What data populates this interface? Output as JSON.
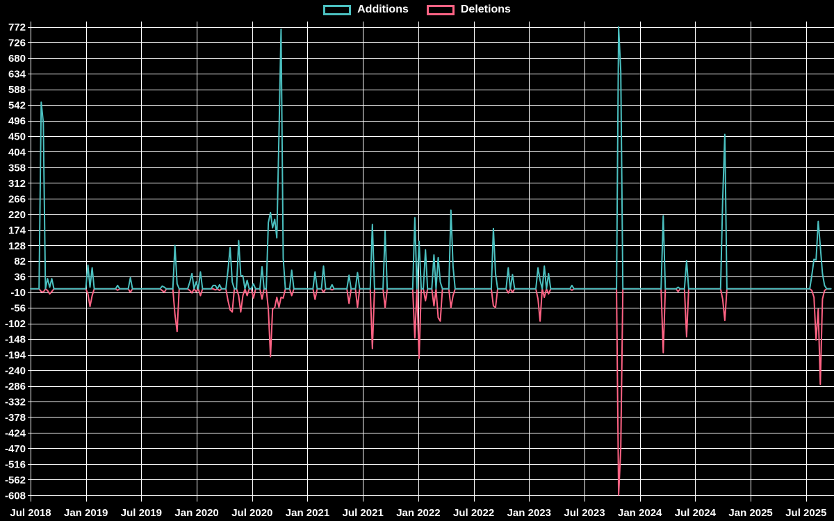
{
  "colors": {
    "background": "#000000",
    "grid": "#ffffff",
    "text": "#ffffff",
    "additions": "#4BC0C0",
    "deletions": "#FF6384"
  },
  "legend": {
    "items": [
      {
        "label": "Additions",
        "color": "#4BC0C0"
      },
      {
        "label": "Deletions",
        "color": "#FF6384"
      }
    ]
  },
  "chart_data": {
    "type": "line",
    "title": "",
    "xlabel": "",
    "ylabel": "",
    "legend_position": "top",
    "grid": true,
    "x_axis": {
      "tick_labels": [
        "Jul 2018",
        "Jan 2019",
        "Jul 2019",
        "Jan 2020",
        "Jul 2020",
        "Jan 2021",
        "Jul 2021",
        "Jan 2022",
        "Jul 2022",
        "Jan 2023",
        "Jul 2023",
        "Jan 2024",
        "Jul 2024",
        "Jan 2025",
        "Jul 2025"
      ],
      "start": "2018-07",
      "end": "2025-09",
      "tick_interval_months": 6
    },
    "y_axis": {
      "min": -608,
      "max": 772,
      "tick_step": 46,
      "tick_labels": [
        772,
        726,
        680,
        634,
        588,
        542,
        496,
        450,
        404,
        358,
        312,
        266,
        220,
        174,
        128,
        82,
        36,
        -10,
        -56,
        -102,
        -148,
        -194,
        -240,
        -286,
        -332,
        -378,
        -424,
        -470,
        -516,
        -562,
        -608
      ]
    },
    "series": [
      {
        "name": "Additions",
        "color": "#4BC0C0"
      },
      {
        "name": "Deletions",
        "color": "#FF6384"
      }
    ],
    "sampling": "weekly; additions and deletions are 0 for every week not listed in points",
    "points": [
      {
        "date": "2018-08-05",
        "additions": 550,
        "deletions": -8
      },
      {
        "date": "2018-08-12",
        "additions": 490,
        "deletions": -10
      },
      {
        "date": "2018-08-26",
        "additions": 30,
        "deletions": -5
      },
      {
        "date": "2018-09-02",
        "additions": 5,
        "deletions": -15
      },
      {
        "date": "2018-09-09",
        "additions": 30,
        "deletions": -8
      },
      {
        "date": "2019-01-06",
        "additions": 70,
        "deletions": -15
      },
      {
        "date": "2019-01-13",
        "additions": 5,
        "deletions": -52
      },
      {
        "date": "2019-01-20",
        "additions": 62,
        "deletions": -20
      },
      {
        "date": "2019-04-14",
        "additions": 10,
        "deletions": -4
      },
      {
        "date": "2019-05-26",
        "additions": 33,
        "deletions": -10
      },
      {
        "date": "2019-09-08",
        "additions": 8,
        "deletions": -5
      },
      {
        "date": "2019-09-15",
        "additions": 5,
        "deletions": -10
      },
      {
        "date": "2019-10-20",
        "additions": 128,
        "deletions": -75
      },
      {
        "date": "2019-10-27",
        "additions": 15,
        "deletions": -126
      },
      {
        "date": "2019-12-08",
        "additions": 20,
        "deletions": -5
      },
      {
        "date": "2019-12-15",
        "additions": 45,
        "deletions": -12
      },
      {
        "date": "2019-12-29",
        "additions": 20,
        "deletions": -8
      },
      {
        "date": "2020-01-12",
        "additions": 50,
        "deletions": -20
      },
      {
        "date": "2020-02-23",
        "additions": 10,
        "deletions": 0
      },
      {
        "date": "2020-03-01",
        "additions": 10,
        "deletions": -3
      },
      {
        "date": "2020-03-15",
        "additions": 12,
        "deletions": -5
      },
      {
        "date": "2020-04-12",
        "additions": 56,
        "deletions": -35
      },
      {
        "date": "2020-04-19",
        "additions": 122,
        "deletions": -62
      },
      {
        "date": "2020-04-26",
        "additions": 20,
        "deletions": -68
      },
      {
        "date": "2020-05-17",
        "additions": 142,
        "deletions": -20
      },
      {
        "date": "2020-05-24",
        "additions": 40,
        "deletions": -68
      },
      {
        "date": "2020-05-31",
        "additions": 38,
        "deletions": -20
      },
      {
        "date": "2020-06-14",
        "additions": 25,
        "deletions": -20
      },
      {
        "date": "2020-07-05",
        "additions": 15,
        "deletions": -27
      },
      {
        "date": "2020-08-02",
        "additions": 65,
        "deletions": -30
      },
      {
        "date": "2020-08-23",
        "additions": 195,
        "deletions": -60
      },
      {
        "date": "2020-08-30",
        "additions": 225,
        "deletions": -200
      },
      {
        "date": "2020-09-06",
        "additions": 180,
        "deletions": -60
      },
      {
        "date": "2020-09-13",
        "additions": 205,
        "deletions": -55
      },
      {
        "date": "2020-09-20",
        "additions": 150,
        "deletions": -25
      },
      {
        "date": "2020-09-27",
        "additions": 455,
        "deletions": -54
      },
      {
        "date": "2020-10-04",
        "additions": 765,
        "deletions": -25
      },
      {
        "date": "2020-10-11",
        "additions": 90,
        "deletions": -27
      },
      {
        "date": "2020-11-08",
        "additions": 55,
        "deletions": -20
      },
      {
        "date": "2021-01-24",
        "additions": 50,
        "deletions": -31
      },
      {
        "date": "2021-02-21",
        "additions": 67,
        "deletions": -10
      },
      {
        "date": "2021-03-21",
        "additions": 12,
        "deletions": -3
      },
      {
        "date": "2021-05-16",
        "additions": 40,
        "deletions": -43
      },
      {
        "date": "2021-06-13",
        "additions": 48,
        "deletions": -54
      },
      {
        "date": "2021-08-01",
        "additions": 190,
        "deletions": -176
      },
      {
        "date": "2021-09-12",
        "additions": 170,
        "deletions": -55
      },
      {
        "date": "2021-12-19",
        "additions": 210,
        "deletions": -145
      },
      {
        "date": "2022-01-02",
        "additions": 140,
        "deletions": -205
      },
      {
        "date": "2022-01-23",
        "additions": 115,
        "deletions": -35
      },
      {
        "date": "2022-02-20",
        "additions": 100,
        "deletions": -50
      },
      {
        "date": "2022-03-06",
        "additions": 92,
        "deletions": -85
      },
      {
        "date": "2022-03-13",
        "additions": 20,
        "deletions": -95
      },
      {
        "date": "2022-04-17",
        "additions": 232,
        "deletions": -55
      },
      {
        "date": "2022-04-24",
        "additions": 65,
        "deletions": -20
      },
      {
        "date": "2022-09-04",
        "additions": 178,
        "deletions": -50
      },
      {
        "date": "2022-09-11",
        "additions": 45,
        "deletions": -55
      },
      {
        "date": "2022-10-23",
        "additions": 62,
        "deletions": -12
      },
      {
        "date": "2022-11-06",
        "additions": 42,
        "deletions": -10
      },
      {
        "date": "2023-01-29",
        "additions": 62,
        "deletions": -30
      },
      {
        "date": "2023-02-05",
        "additions": 25,
        "deletions": -95
      },
      {
        "date": "2023-02-19",
        "additions": 67,
        "deletions": -25
      },
      {
        "date": "2023-03-05",
        "additions": 45,
        "deletions": -15
      },
      {
        "date": "2023-05-21",
        "additions": 10,
        "deletions": -4
      },
      {
        "date": "2023-10-22",
        "additions": 772,
        "deletions": -608
      },
      {
        "date": "2023-10-29",
        "additions": 640,
        "deletions": -470
      },
      {
        "date": "2024-03-17",
        "additions": 215,
        "deletions": -188
      },
      {
        "date": "2024-05-05",
        "additions": 5,
        "deletions": -8
      },
      {
        "date": "2024-06-02",
        "additions": 83,
        "deletions": -141
      },
      {
        "date": "2024-09-29",
        "additions": 260,
        "deletions": -30
      },
      {
        "date": "2024-10-06",
        "additions": 455,
        "deletions": -93
      },
      {
        "date": "2025-07-20",
        "additions": 40,
        "deletions": -5
      },
      {
        "date": "2025-07-27",
        "additions": 87,
        "deletions": -25
      },
      {
        "date": "2025-08-03",
        "additions": 85,
        "deletions": -151
      },
      {
        "date": "2025-08-10",
        "additions": 199,
        "deletions": -60
      },
      {
        "date": "2025-08-17",
        "additions": 125,
        "deletions": -281
      },
      {
        "date": "2025-08-24",
        "additions": 45,
        "deletions": -30
      },
      {
        "date": "2025-08-31",
        "additions": 10,
        "deletions": -5
      }
    ]
  }
}
